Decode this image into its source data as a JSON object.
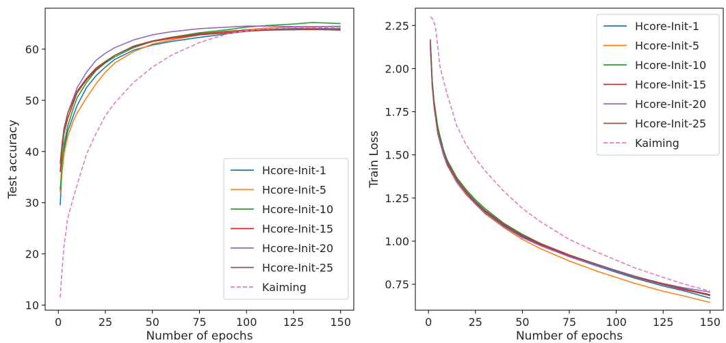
{
  "chart_data": [
    {
      "type": "line",
      "xlabel": "Number of epochs",
      "ylabel": "Test accuracy",
      "xlim": [
        -7,
        157
      ],
      "ylim": [
        9,
        68
      ],
      "xticks": [
        0,
        25,
        50,
        75,
        100,
        125,
        150
      ],
      "yticks": [
        10,
        20,
        30,
        40,
        50,
        60
      ],
      "grid": false,
      "legend_position": "lower-right",
      "series": [
        {
          "name": "Hcore-Init-1",
          "color": "#1f77b4",
          "dash": "solid",
          "x": [
            1,
            2,
            3,
            5,
            8,
            10,
            15,
            20,
            25,
            30,
            40,
            50,
            60,
            75,
            90,
            100,
            110,
            125,
            135,
            150
          ],
          "y": [
            29.5,
            37,
            40.5,
            44,
            47,
            49,
            52.5,
            54.8,
            56.5,
            58,
            59.8,
            60.8,
            61.5,
            62.3,
            63,
            63.5,
            63.8,
            64,
            64,
            64
          ]
        },
        {
          "name": "Hcore-Init-5",
          "color": "#ff7f0e",
          "dash": "solid",
          "x": [
            1,
            2,
            3,
            5,
            8,
            10,
            15,
            20,
            25,
            30,
            40,
            50,
            60,
            75,
            90,
            100,
            110,
            125,
            135,
            150
          ],
          "y": [
            32,
            36,
            39.5,
            43,
            46,
            47.5,
            50.5,
            53.2,
            55.5,
            57.3,
            59.5,
            61,
            61.8,
            62.8,
            63.4,
            63.8,
            64.1,
            64.3,
            64.3,
            64.5
          ]
        },
        {
          "name": "Hcore-Init-10",
          "color": "#2ca02c",
          "dash": "solid",
          "x": [
            1,
            2,
            3,
            5,
            8,
            10,
            15,
            20,
            25,
            30,
            40,
            50,
            60,
            75,
            90,
            100,
            110,
            125,
            135,
            150
          ],
          "y": [
            32.5,
            38,
            41.5,
            45,
            48.5,
            50.5,
            53.5,
            55.8,
            57.3,
            58.5,
            60.3,
            61.5,
            62.3,
            63.2,
            63.8,
            64.3,
            64.6,
            64.9,
            65.2,
            65
          ]
        },
        {
          "name": "Hcore-Init-15",
          "color": "#d62728",
          "dash": "solid",
          "x": [
            1,
            2,
            3,
            5,
            8,
            10,
            15,
            20,
            25,
            30,
            40,
            50,
            60,
            75,
            90,
            100,
            110,
            125,
            135,
            150
          ],
          "y": [
            36,
            40.5,
            43.5,
            46.5,
            49.5,
            51.5,
            54,
            56,
            57.5,
            58.8,
            60.5,
            61.5,
            62.1,
            62.8,
            63.2,
            63.5,
            63.7,
            63.8,
            63.9,
            63.7
          ]
        },
        {
          "name": "Hcore-Init-20",
          "color": "#9467bd",
          "dash": "solid",
          "x": [
            1,
            2,
            3,
            5,
            8,
            10,
            15,
            20,
            25,
            30,
            40,
            50,
            60,
            75,
            90,
            100,
            110,
            125,
            135,
            150
          ],
          "y": [
            37.5,
            41.5,
            44,
            47.5,
            50.5,
            52.5,
            55.5,
            57.8,
            59.2,
            60.3,
            61.8,
            62.8,
            63.4,
            64,
            64.3,
            64.5,
            64.5,
            64.4,
            64.4,
            64.4
          ]
        },
        {
          "name": "Hcore-Init-25",
          "color": "#8c564b",
          "dash": "solid",
          "x": [
            1,
            2,
            3,
            5,
            8,
            10,
            15,
            20,
            25,
            30,
            40,
            50,
            60,
            75,
            90,
            100,
            110,
            125,
            135,
            150
          ],
          "y": [
            37.8,
            41.5,
            44.5,
            47.5,
            50,
            51.8,
            54.3,
            56.3,
            57.6,
            58.8,
            60.6,
            61.6,
            62.3,
            63,
            63.5,
            63.7,
            63.8,
            63.8,
            63.8,
            63.8
          ]
        },
        {
          "name": "Kaiming",
          "color": "#e377c2",
          "dash": "dashed",
          "x": [
            1,
            2,
            3,
            5,
            8,
            10,
            15,
            20,
            25,
            30,
            40,
            50,
            60,
            75,
            90,
            100,
            110,
            125,
            135,
            150
          ],
          "y": [
            11.5,
            17,
            21.5,
            27,
            31,
            33.5,
            39.5,
            43.5,
            47,
            49.5,
            53.5,
            56.5,
            58.8,
            61.3,
            63,
            63.6,
            64,
            64.2,
            64.2,
            64.3
          ]
        }
      ]
    },
    {
      "type": "line",
      "xlabel": "Number of epochs",
      "ylabel": "Train Loss",
      "xlim": [
        -7,
        157
      ],
      "ylim": [
        0.6,
        2.35
      ],
      "xticks": [
        0,
        25,
        50,
        75,
        100,
        125,
        150
      ],
      "yticks": [
        0.75,
        1.0,
        1.25,
        1.5,
        1.75,
        2.0,
        2.25
      ],
      "yticklabels": [
        "0.75",
        "1.00",
        "1.25",
        "1.50",
        "1.75",
        "2.00",
        "2.25"
      ],
      "grid": false,
      "legend_position": "upper-right",
      "series": [
        {
          "name": "Hcore-Init-1",
          "color": "#1f77b4",
          "dash": "solid",
          "x": [
            1,
            2,
            3,
            5,
            8,
            10,
            15,
            20,
            25,
            30,
            40,
            50,
            60,
            75,
            90,
            100,
            110,
            125,
            135,
            150
          ],
          "y": [
            2.12,
            1.9,
            1.78,
            1.62,
            1.5,
            1.44,
            1.35,
            1.28,
            1.22,
            1.17,
            1.09,
            1.025,
            0.975,
            0.91,
            0.855,
            0.82,
            0.785,
            0.74,
            0.715,
            0.67
          ]
        },
        {
          "name": "Hcore-Init-5",
          "color": "#ff7f0e",
          "dash": "solid",
          "x": [
            1,
            2,
            3,
            5,
            8,
            10,
            15,
            20,
            25,
            30,
            40,
            50,
            60,
            75,
            90,
            100,
            110,
            125,
            135,
            150
          ],
          "y": [
            2.14,
            1.9,
            1.77,
            1.62,
            1.5,
            1.44,
            1.34,
            1.27,
            1.215,
            1.16,
            1.08,
            1.01,
            0.955,
            0.885,
            0.825,
            0.79,
            0.755,
            0.71,
            0.685,
            0.645
          ]
        },
        {
          "name": "Hcore-Init-10",
          "color": "#2ca02c",
          "dash": "solid",
          "x": [
            1,
            2,
            3,
            5,
            8,
            10,
            15,
            20,
            25,
            30,
            40,
            50,
            60,
            75,
            90,
            100,
            110,
            125,
            135,
            150
          ],
          "y": [
            2.15,
            1.93,
            1.81,
            1.66,
            1.53,
            1.47,
            1.37,
            1.3,
            1.24,
            1.19,
            1.105,
            1.04,
            0.985,
            0.92,
            0.862,
            0.828,
            0.795,
            0.75,
            0.725,
            0.685
          ]
        },
        {
          "name": "Hcore-Init-15",
          "color": "#d62728",
          "dash": "solid",
          "x": [
            1,
            2,
            3,
            5,
            8,
            10,
            15,
            20,
            25,
            30,
            40,
            50,
            60,
            75,
            90,
            100,
            110,
            125,
            135,
            150
          ],
          "y": [
            2.16,
            1.91,
            1.79,
            1.63,
            1.51,
            1.45,
            1.355,
            1.285,
            1.225,
            1.175,
            1.095,
            1.03,
            0.98,
            0.915,
            0.86,
            0.826,
            0.792,
            0.748,
            0.722,
            0.685
          ]
        },
        {
          "name": "Hcore-Init-20",
          "color": "#9467bd",
          "dash": "solid",
          "x": [
            1,
            2,
            3,
            5,
            8,
            10,
            15,
            20,
            25,
            30,
            40,
            50,
            60,
            75,
            90,
            100,
            110,
            125,
            135,
            150
          ],
          "y": [
            2.13,
            1.9,
            1.78,
            1.62,
            1.5,
            1.44,
            1.345,
            1.275,
            1.215,
            1.165,
            1.085,
            1.02,
            0.972,
            0.91,
            0.858,
            0.826,
            0.795,
            0.755,
            0.732,
            0.705
          ]
        },
        {
          "name": "Hcore-Init-25",
          "color": "#8c564b",
          "dash": "solid",
          "x": [
            1,
            2,
            3,
            5,
            8,
            10,
            15,
            20,
            25,
            30,
            40,
            50,
            60,
            75,
            90,
            100,
            110,
            125,
            135,
            150
          ],
          "y": [
            2.17,
            1.92,
            1.8,
            1.64,
            1.52,
            1.46,
            1.36,
            1.29,
            1.23,
            1.18,
            1.1,
            1.035,
            0.985,
            0.92,
            0.865,
            0.83,
            0.797,
            0.752,
            0.727,
            0.69
          ]
        },
        {
          "name": "Kaiming",
          "color": "#e377c2",
          "dash": "dashed",
          "x": [
            1,
            2,
            3,
            4,
            5,
            6,
            8,
            10,
            15,
            20,
            25,
            30,
            40,
            50,
            60,
            75,
            90,
            100,
            110,
            125,
            135,
            150
          ],
          "y": [
            2.3,
            2.29,
            2.27,
            2.22,
            2.12,
            2.02,
            1.93,
            1.85,
            1.67,
            1.56,
            1.48,
            1.41,
            1.29,
            1.19,
            1.11,
            1.01,
            0.935,
            0.89,
            0.845,
            0.79,
            0.755,
            0.71
          ]
        }
      ]
    }
  ]
}
